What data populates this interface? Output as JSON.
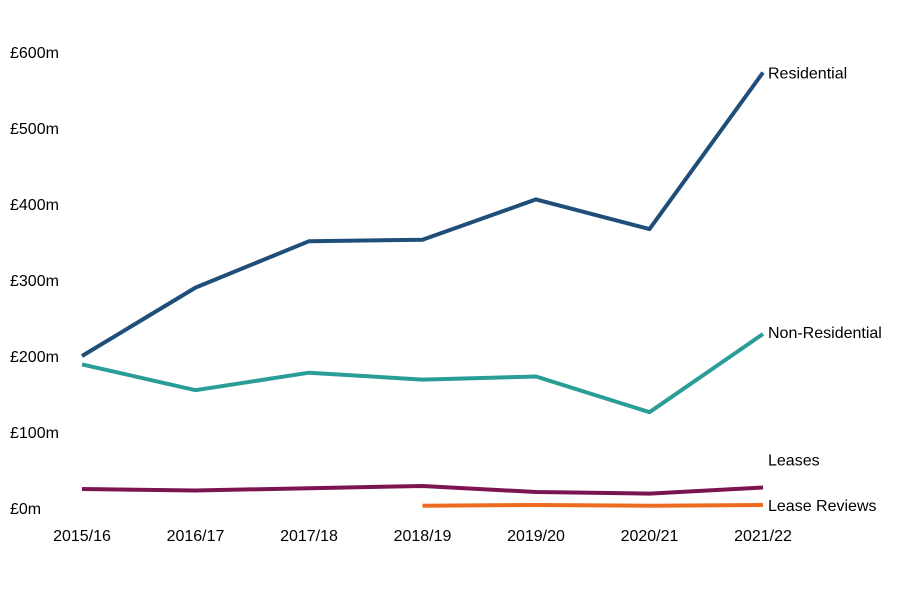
{
  "chart_data": {
    "type": "line",
    "title": "",
    "xlabel": "",
    "ylabel": "",
    "categories": [
      "2015/16",
      "2016/17",
      "2017/18",
      "2018/19",
      "2019/20",
      "2020/21",
      "2021/22"
    ],
    "ylim": [
      0,
      600
    ],
    "yticks": [
      0,
      100,
      200,
      300,
      400,
      500,
      600
    ],
    "ytick_labels": [
      "£0m",
      "£100m",
      "£200m",
      "£300m",
      "£400m",
      "£500m",
      "£600m"
    ],
    "grid": false,
    "legend": "direct labels at line ends",
    "series": [
      {
        "name": "Residential",
        "color": "#1f4e79",
        "values": [
          200,
          290,
          351,
          353,
          406,
          367,
          573
        ]
      },
      {
        "name": "Non-Residential",
        "color": "#2a9d96",
        "values": [
          189,
          155,
          178,
          169,
          173,
          126,
          229
        ]
      },
      {
        "name": "Leases",
        "color": "#7b1451",
        "values": [
          25,
          23,
          26,
          29,
          21,
          19,
          27
        ]
      },
      {
        "name": "Lease Reviews",
        "color": "#ed6a1f",
        "values": [
          null,
          null,
          null,
          3,
          4,
          3,
          4
        ]
      }
    ]
  }
}
